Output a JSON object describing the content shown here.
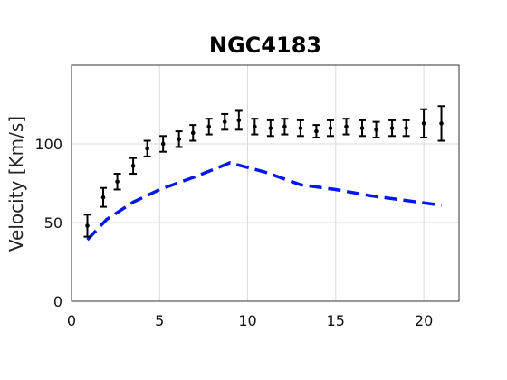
{
  "chart_data": {
    "type": "line",
    "title": "NGC4183",
    "xlabel": "",
    "ylabel": "Velocity [Km/s]",
    "xlim": [
      0,
      22
    ],
    "ylim": [
      0,
      150
    ],
    "xticks": [
      0,
      5,
      10,
      15,
      20
    ],
    "yticks": [
      0,
      50,
      100
    ],
    "grid": true,
    "legend": "none",
    "series": [
      {
        "style": "errorbar-points",
        "color": "#000000",
        "x": [
          0.9,
          1.8,
          2.6,
          3.5,
          4.3,
          5.2,
          6.1,
          6.9,
          7.8,
          8.7,
          9.5,
          10.4,
          11.3,
          12.1,
          13.0,
          13.9,
          14.7,
          15.6,
          16.5,
          17.3,
          18.2,
          19.0,
          20.0,
          21.0
        ],
        "y": [
          48,
          66,
          76,
          86,
          97,
          100,
          103,
          107,
          111,
          114,
          115,
          111,
          110,
          111,
          110,
          108,
          110,
          111,
          110,
          109,
          110,
          110,
          113,
          113
        ],
        "err": [
          7,
          6,
          5,
          5,
          5,
          5,
          5,
          5,
          5,
          5,
          6,
          5,
          5,
          5,
          5,
          4,
          5,
          5,
          5,
          5,
          5,
          5,
          9,
          11
        ]
      },
      {
        "style": "dashed-line",
        "color": "#0019e6",
        "x": [
          0.9,
          2.0,
          3.5,
          5.0,
          7.0,
          9.0,
          11.0,
          13.0,
          15.0,
          17.0,
          19.0,
          21.0
        ],
        "y": [
          39,
          52,
          63,
          71,
          79,
          88,
          82,
          74,
          71,
          67,
          64,
          61
        ]
      }
    ]
  }
}
